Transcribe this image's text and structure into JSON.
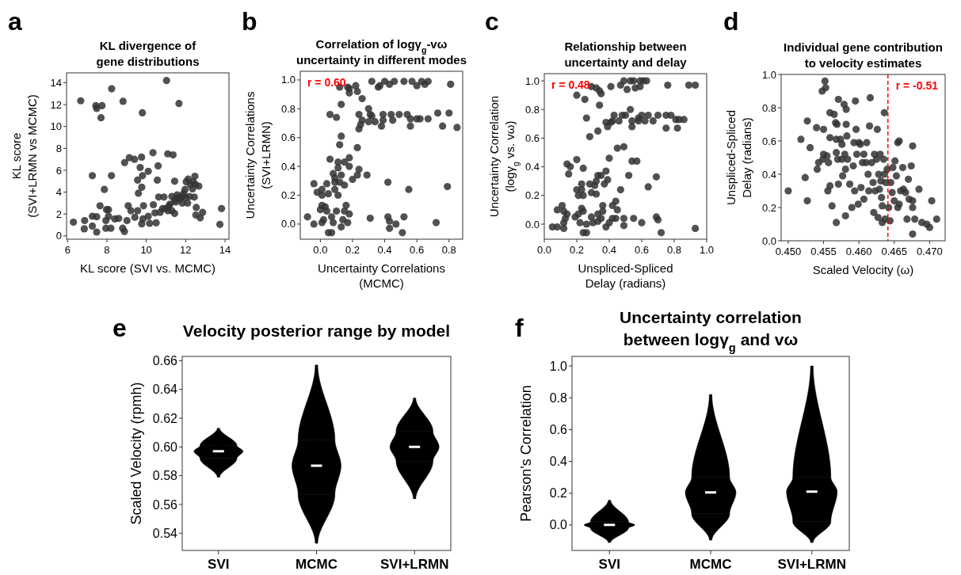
{
  "chart_data": [
    {
      "type": "scatter",
      "title": "KL divergence of\ngene distributions",
      "xlabel": "KL score (SVI vs. MCMC)",
      "ylabel": "KL score\n(SVI+LRMN vs MCMC)",
      "annotations": [
        "a"
      ],
      "color": "#333333",
      "marker": "circle",
      "xlim": [
        5.95,
        14.2
      ],
      "ylim": [
        -0.3,
        14.9
      ],
      "xticks": [
        6,
        8,
        10,
        12,
        14
      ],
      "yticks": [
        0,
        2,
        4,
        6,
        8,
        10,
        12,
        14
      ],
      "x": [
        6.3,
        6.67,
        6.85,
        6.87,
        7.26,
        7.26,
        7.26,
        7.44,
        7.48,
        7.75,
        7.7,
        7.65,
        7.48,
        7.48,
        7.87,
        7.98,
        8.08,
        7.95,
        7.95,
        8.08,
        8.24,
        8.23,
        8.2,
        8.4,
        8.6,
        8.8,
        8.89,
        8.82,
        8.9,
        9.14,
        9.4,
        9.02,
        9.08,
        9.22,
        9.42,
        9.56,
        9.76,
        9.69,
        9.81,
        9.56,
        9.77,
        9.6,
        9.8,
        9.77,
        9.86,
        9.83,
        10.1,
        10.1,
        10.17,
        10.34,
        10.36,
        10.44,
        10.5,
        10.56,
        10.6,
        10.63,
        10.7,
        10.9,
        11.03,
        11.09,
        11.36,
        11.44,
        11.66,
        10.96,
        11.16,
        11.3,
        11.44,
        11.57,
        11.7,
        11.83,
        11.97,
        12.03,
        12.13,
        12.24,
        12.38,
        12.47,
        12.5,
        11.83,
        12.1,
        12.44,
        12.54,
        12.67,
        12.52,
        12.74,
        12.86,
        13.74,
        13.82,
        11.44,
        10.83,
        11.3,
        11.2,
        11.5,
        11.9,
        12.2,
        12.35,
        11.65,
        12.0,
        11.1
      ],
      "values": [
        1.25,
        12.35,
        0.65,
        1.4,
        5.5,
        1.8,
        0.9,
        11.9,
        11.65,
        11.9,
        10.8,
        2.75,
        0.35,
        1.75,
        4.25,
        2.4,
        2.4,
        1.4,
        0.7,
        1.8,
        13.45,
        5.5,
        0.7,
        1.55,
        1.6,
        0.7,
        0.4,
        12.3,
        6.7,
        7.15,
        7.0,
        1.4,
        2.75,
        2.3,
        1.7,
        2.3,
        7.2,
        6.25,
        5.5,
        5.1,
        4.45,
        3.9,
        11.25,
        1.1,
        2.75,
        1.55,
        5.9,
        1.8,
        1.15,
        7.6,
        2.85,
        2.1,
        1.2,
        5.1,
        6.4,
        3.55,
        2.15,
        3.55,
        14.2,
        7.5,
        7.4,
        5.0,
        12.1,
        2.5,
        2.75,
        2.3,
        3.25,
        3.75,
        3.4,
        3.65,
        4.25,
        4.95,
        5.2,
        4.7,
        4.95,
        5.45,
        4.7,
        3.0,
        3.0,
        3.55,
        2.6,
        4.55,
        1.9,
        1.65,
        2.15,
        1.05,
        2.5,
        2.05,
        2.5,
        3.6,
        2.9,
        3.1,
        3.9,
        3.6,
        4.3,
        3.5,
        3.5,
        2.3
      ]
    },
    {
      "type": "scatter",
      "title": "Correlation of logγ$_{g}$-vω\nuncertainty in different modes",
      "xlabel": "Uncertainty Correlations\n(MCMC)",
      "ylabel": "Uncertainty Correlations\n(SVI+LRMN)",
      "annotations": [
        "b",
        "r = 0.60"
      ],
      "color": "#333333",
      "marker": "circle",
      "xlim": [
        -0.125,
        0.885
      ],
      "ylim": [
        -0.105,
        1.06
      ],
      "xticks": [
        {
          "value": 0,
          "label": "0.0"
        },
        0.2,
        0.4,
        0.6,
        0.8
      ],
      "yticks": [
        {
          "value": 0,
          "label": "0.0"
        },
        0.2,
        0.4,
        0.6,
        0.8,
        {
          "value": 1,
          "label": "1.0"
        }
      ],
      "x": [
        -0.08,
        -0.04,
        -0.04,
        -0.02,
        0.01,
        0.01,
        0.0,
        0.01,
        0.02,
        0.03,
        0.04,
        0.01,
        0.05,
        0.04,
        0.05,
        0.07,
        0.06,
        0.06,
        0.07,
        0.08,
        0.08,
        0.09,
        0.09,
        0.09,
        0.1,
        0.1,
        0.11,
        0.11,
        0.11,
        0.12,
        0.12,
        0.13,
        0.13,
        0.13,
        0.12,
        0.13,
        0.14,
        0.15,
        0.15,
        0.15,
        0.16,
        0.17,
        0.17,
        0.18,
        0.18,
        0.18,
        0.18,
        0.18,
        0.2,
        0.22,
        0.23,
        0.23,
        0.23,
        0.24,
        0.24,
        0.24,
        0.25,
        0.26,
        0.26,
        0.29,
        0.3,
        0.3,
        0.31,
        0.31,
        0.32,
        0.32,
        0.34,
        0.36,
        0.37,
        0.38,
        0.39,
        0.4,
        0.39,
        0.42,
        0.42,
        0.43,
        0.43,
        0.43,
        0.44,
        0.45,
        0.46,
        0.47,
        0.49,
        0.51,
        0.52,
        0.52,
        0.54,
        0.55,
        0.56,
        0.56,
        0.57,
        0.6,
        0.6,
        0.63,
        0.62,
        0.65,
        0.67,
        0.67,
        0.72,
        0.73,
        0.76,
        0.79,
        0.8,
        0.81,
        0.85
      ],
      "values": [
        0.05,
        0.0,
        0.28,
        0.22,
        0.24,
        0.2,
        0.1,
        0.13,
        0.03,
        0.12,
        0.09,
        0.01,
        0.21,
        0.28,
        -0.06,
        -0.06,
        0.45,
        0.76,
        0.05,
        0.01,
        0.35,
        0.29,
        0.24,
        0.32,
        0.74,
        0.09,
        0.43,
        0.39,
        0.2,
        0.55,
        0.29,
        0.34,
        0.61,
        0.83,
        0.95,
        -0.02,
        0.03,
        0.27,
        0.43,
        0.09,
        0.13,
        0.01,
        0.95,
        0.94,
        0.91,
        0.46,
        0.4,
        0.07,
        0.31,
        0.96,
        0.53,
        0.34,
        0.92,
        0.76,
        0.66,
        0.38,
        0.69,
        0.72,
        0.87,
        0.34,
        0.8,
        0.71,
        0.76,
        0.04,
        0.99,
        0.75,
        0.71,
        0.95,
        0.96,
        0.68,
        0.76,
        0.99,
        0.72,
        0.29,
        0.05,
        0.02,
        0.97,
        -0.03,
        0.76,
        0.72,
        0.99,
        0.0,
        0.76,
        -0.06,
        0.99,
        0.05,
        0.76,
        0.24,
        0.73,
        0.68,
        0.99,
        0.96,
        0.73,
        0.99,
        0.73,
        0.97,
        0.73,
        0.99,
        0.01,
        0.77,
        0.68,
        0.26,
        0.77,
        0.97,
        0.67
      ]
    },
    {
      "type": "scatter",
      "title": "Relationship between\nuncertainty and delay",
      "xlabel": "Unspliced-Spliced\nDelay (radians)",
      "ylabel": "Uncertainty Correlation\n(logγ$_{g}$ vs. vω)",
      "annotations": [
        "c",
        "r = 0.48"
      ],
      "color": "#333333",
      "marker": "circle",
      "xlim": [
        0,
        1
      ],
      "ylim": [
        -0.105,
        1.05
      ],
      "xticks": [
        {
          "value": 0,
          "label": "0.0"
        },
        0.2,
        0.4,
        0.6,
        0.8,
        {
          "value": 1,
          "label": "1.0"
        }
      ],
      "yticks": [
        {
          "value": 0,
          "label": "0.0"
        },
        0.2,
        0.4,
        0.6,
        0.8,
        {
          "value": 1,
          "label": "1.0"
        }
      ],
      "x": [
        0.05,
        0.08,
        0.08,
        0.11,
        0.12,
        0.12,
        0.12,
        0.13,
        0.14,
        0.14,
        0.16,
        0.15,
        0.19,
        0.2,
        0.2,
        0.21,
        0.2,
        0.21,
        0.22,
        0.23,
        0.23,
        0.23,
        0.24,
        0.24,
        0.24,
        0.25,
        0.24,
        0.26,
        0.26,
        0.26,
        0.28,
        0.28,
        0.29,
        0.29,
        0.29,
        0.3,
        0.31,
        0.32,
        0.32,
        0.32,
        0.33,
        0.33,
        0.33,
        0.33,
        0.34,
        0.34,
        0.35,
        0.35,
        0.35,
        0.36,
        0.36,
        0.37,
        0.38,
        0.38,
        0.38,
        0.4,
        0.39,
        0.39,
        0.4,
        0.41,
        0.41,
        0.42,
        0.42,
        0.42,
        0.43,
        0.44,
        0.44,
        0.45,
        0.45,
        0.46,
        0.47,
        0.47,
        0.48,
        0.49,
        0.49,
        0.49,
        0.49,
        0.5,
        0.51,
        0.52,
        0.53,
        0.53,
        0.54,
        0.54,
        0.54,
        0.55,
        0.55,
        0.56,
        0.57,
        0.58,
        0.58,
        0.59,
        0.59,
        0.6,
        0.6,
        0.61,
        0.62,
        0.63,
        0.64,
        0.64,
        0.67,
        0.69,
        0.69,
        0.7,
        0.7,
        0.72,
        0.76,
        0.75,
        0.75,
        0.78,
        0.81,
        0.82,
        0.83,
        0.86,
        0.89,
        0.93,
        0.93
      ],
      "values": [
        -0.02,
        -0.02,
        0.1,
        0.13,
        0.09,
        0.01,
        -0.03,
        0.04,
        0.07,
        0.42,
        0.4,
        0.35,
        0.05,
        0.45,
        0.24,
        0.2,
        0.9,
        0.07,
        0.01,
        0.28,
        0.24,
        0.11,
        0.2,
        0.39,
        0.09,
        0.87,
        -0.06,
        -0.06,
        0.0,
        0.74,
        0.61,
        0.28,
        0.05,
        0.22,
        0.96,
        0.01,
        0.27,
        0.95,
        0.3,
        0.21,
        0.07,
        0.34,
        0.65,
        0.02,
        0.83,
        0.93,
        0.34,
        0.91,
        0.04,
        0.13,
        0.09,
        0.28,
        0.37,
        0.71,
        -0.02,
        0.46,
        0.68,
        0.31,
        0.01,
        0.96,
        0.71,
        0.72,
        0.04,
        0.13,
        0.76,
        0.16,
        0.04,
        0.53,
        0.1,
        0.72,
        0.97,
        0.24,
        0.76,
        -0.01,
        0.54,
        0.04,
        1.0,
        0.76,
        0.94,
        0.34,
        1.0,
        0.8,
        0.68,
        0.72,
        0.44,
        0.04,
        1.0,
        0.95,
        0.44,
        0.74,
        0.72,
        1.0,
        0.96,
        0.76,
        0.01,
        1.0,
        0.72,
        1.0,
        0.26,
        0.76,
        0.72,
        0.33,
        0.05,
        0.76,
        0.03,
        -0.06,
        0.97,
        0.76,
        0.67,
        0.76,
        0.73,
        0.67,
        0.73,
        0.73,
        0.97,
        0.97,
        -0.03
      ]
    },
    {
      "type": "scatter",
      "title": "Individual gene contribution\nto velocity estimates",
      "xlabel": "Scaled Velocity (ω)",
      "ylabel": "Unspliced-Spliced\nDelay (radians)",
      "annotations": [
        "d",
        "r = -0.51"
      ],
      "color": "#333333",
      "marker": "circle",
      "xlim": [
        0.449,
        0.4722
      ],
      "ylim": [
        0,
        1
      ],
      "xticks": [
        {
          "value": 0.45,
          "label": "0.450"
        },
        0.455,
        {
          "value": 0.46,
          "label": "0.460"
        },
        0.465,
        {
          "value": 0.47,
          "label": "0.470"
        }
      ],
      "yticks": [
        {
          "value": 0,
          "label": "0.0"
        },
        0.2,
        0.4,
        0.6,
        0.8,
        {
          "value": 1,
          "label": "1.0"
        }
      ],
      "ref_lines": [
        {
          "axis": "x",
          "value": 0.4641,
          "color": "#ff0000",
          "line_style": "dashed"
        }
      ],
      "x": [
        0.45,
        0.4518,
        0.4524,
        0.4527,
        0.4527,
        0.4531,
        0.454,
        0.4541,
        0.4543,
        0.4548,
        0.4549,
        0.455,
        0.455,
        0.4552,
        0.4553,
        0.4555,
        0.4556,
        0.4557,
        0.4559,
        0.4559,
        0.4559,
        0.4562,
        0.4565,
        0.4567,
        0.4568,
        0.4568,
        0.4569,
        0.4571,
        0.4571,
        0.457,
        0.4568,
        0.4574,
        0.4576,
        0.4576,
        0.4577,
        0.4579,
        0.458,
        0.4581,
        0.4582,
        0.4582,
        0.4581,
        0.4583,
        0.4584,
        0.4587,
        0.459,
        0.4592,
        0.4593,
        0.4594,
        0.4595,
        0.4596,
        0.4597,
        0.4599,
        0.46,
        0.4602,
        0.4603,
        0.4605,
        0.4607,
        0.4607,
        0.461,
        0.4611,
        0.4613,
        0.4614,
        0.4616,
        0.4615,
        0.4618,
        0.462,
        0.4621,
        0.4622,
        0.4623,
        0.4625,
        0.4626,
        0.4627,
        0.4628,
        0.4629,
        0.463,
        0.4631,
        0.4632,
        0.4633,
        0.4633,
        0.4635,
        0.4636,
        0.4636,
        0.4637,
        0.4638,
        0.464,
        0.4642,
        0.4644,
        0.4645,
        0.4647,
        0.4648,
        0.465,
        0.4651,
        0.4653,
        0.4655,
        0.4655,
        0.4659,
        0.4662,
        0.4663,
        0.4657,
        0.4657,
        0.4666,
        0.4668,
        0.467,
        0.4671,
        0.4674,
        0.4676,
        0.4676,
        0.4676,
        0.4676,
        0.4679,
        0.4685,
        0.4689,
        0.4696,
        0.47,
        0.4703,
        0.471
      ],
      "values": [
        0.3,
        0.61,
        0.38,
        0.72,
        0.24,
        0.56,
        0.68,
        0.43,
        0.47,
        0.9,
        0.49,
        0.67,
        0.52,
        0.96,
        0.92,
        0.51,
        0.3,
        0.47,
        0.62,
        0.77,
        0.33,
        0.21,
        0.76,
        0.71,
        0.61,
        0.53,
        0.7,
        0.85,
        0.34,
        0.49,
        0.11,
        0.61,
        0.58,
        0.49,
        0.39,
        0.82,
        0.52,
        0.43,
        0.79,
        0.7,
        0.15,
        0.63,
        0.49,
        0.34,
        0.2,
        0.45,
        0.59,
        0.3,
        0.84,
        0.67,
        0.52,
        0.22,
        0.59,
        0.58,
        0.32,
        0.47,
        0.52,
        0.25,
        0.47,
        0.59,
        0.4,
        0.3,
        0.86,
        0.69,
        0.47,
        0.35,
        0.17,
        0.52,
        0.3,
        0.49,
        0.67,
        0.14,
        0.4,
        0.31,
        0.52,
        0.36,
        0.26,
        0.21,
        0.11,
        0.49,
        0.4,
        0.77,
        0.13,
        0.35,
        0.43,
        0.2,
        0.12,
        0.35,
        0.29,
        0.44,
        0.24,
        0.48,
        0.39,
        0.59,
        0.2,
        0.3,
        0.44,
        0.31,
        0.6,
        0.22,
        0.29,
        0.13,
        0.37,
        0.25,
        0.45,
        0.24,
        0.2,
        0.04,
        0.57,
        0.13,
        0.31,
        0.11,
        0.1,
        0.08,
        0.24,
        0.13
      ]
    },
    {
      "type": "box",
      "title": "Velocity posterior range by model",
      "ylabel": "Scaled Velocity (rpmh)",
      "annotations": [
        "e"
      ],
      "color": "#000000",
      "categories": [
        "SVI",
        "MCMC",
        "SVI+LRMN"
      ],
      "ylim": [
        0.528,
        0.663
      ],
      "yticks": [
        0.54,
        0.56,
        0.58,
        {
          "value": 0.6,
          "label": "0.60"
        },
        0.62,
        0.64,
        0.66
      ],
      "boxes": [
        {
          "low": 0.579,
          "q1": 0.592,
          "median": 0.597,
          "q3": 0.601,
          "high": 0.613
        },
        {
          "low": 0.533,
          "q1": 0.567,
          "median": 0.587,
          "q3": 0.605,
          "high": 0.657
        },
        {
          "low": 0.564,
          "q1": 0.59,
          "median": 0.6,
          "q3": 0.611,
          "high": 0.634
        }
      ]
    },
    {
      "type": "box",
      "title": "Uncertainty correlation\nbetween logγ$_{g}$ and vω",
      "ylabel": "Pearson's Correlation",
      "annotations": [
        "f"
      ],
      "color": "#000000",
      "categories": [
        "SVI",
        "MCMC",
        "SVI+LRMN"
      ],
      "ylim": [
        -0.16,
        1.06
      ],
      "yticks": [
        {
          "value": 0,
          "label": "0.0"
        },
        0.2,
        0.4,
        0.6,
        0.8,
        {
          "value": 1,
          "label": "1.0"
        }
      ],
      "boxes": [
        {
          "low": -0.11,
          "q1": -0.02,
          "median": 0.0,
          "q3": 0.02,
          "high": 0.155
        },
        {
          "low": -0.095,
          "q1": 0.07,
          "median": 0.205,
          "q3": 0.3,
          "high": 0.82
        },
        {
          "low": -0.11,
          "q1": 0.02,
          "median": 0.21,
          "q3": 0.3,
          "high": 1.0
        }
      ]
    }
  ]
}
